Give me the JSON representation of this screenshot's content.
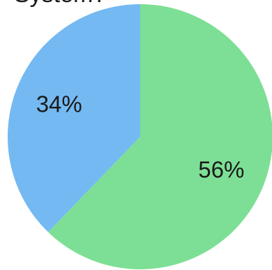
{
  "chart_data": {
    "type": "pie",
    "title": "System?",
    "slices": [
      {
        "label": "56%",
        "value": 56,
        "color": "#7ddf95"
      },
      {
        "label": "34%",
        "value": 34,
        "color": "#74b9f2"
      }
    ],
    "legend": "none"
  }
}
